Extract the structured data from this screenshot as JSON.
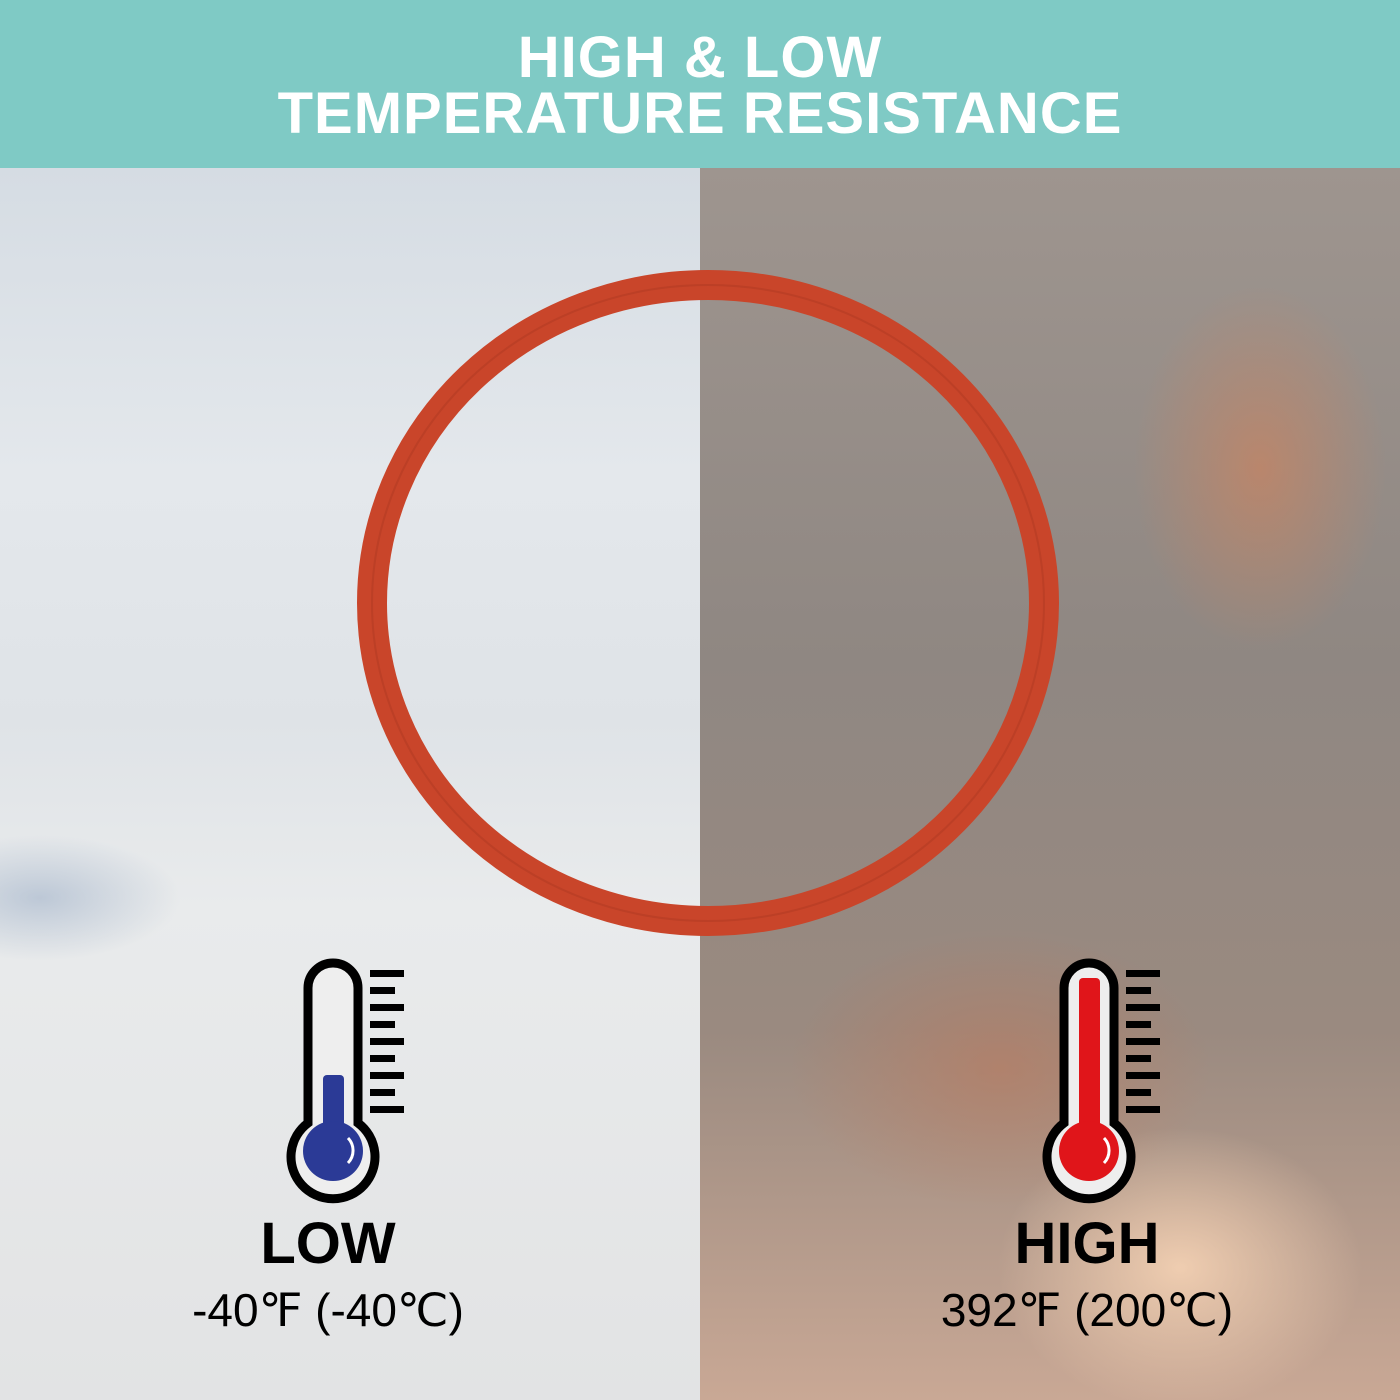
{
  "header": {
    "line1": "HIGH & LOW",
    "line2": "TEMPERATURE RESISTANCE",
    "background": "#7fcac5"
  },
  "product": {
    "ring_color": "#c9452a"
  },
  "low": {
    "title": "LOW",
    "value": "-40℉ (-40℃)",
    "icon": "thermometer-cold-icon",
    "fill_color": "#2b3a96"
  },
  "high": {
    "title": "HIGH",
    "value": "392℉ (200℃)",
    "icon": "thermometer-hot-icon",
    "fill_color": "#e0151a"
  }
}
